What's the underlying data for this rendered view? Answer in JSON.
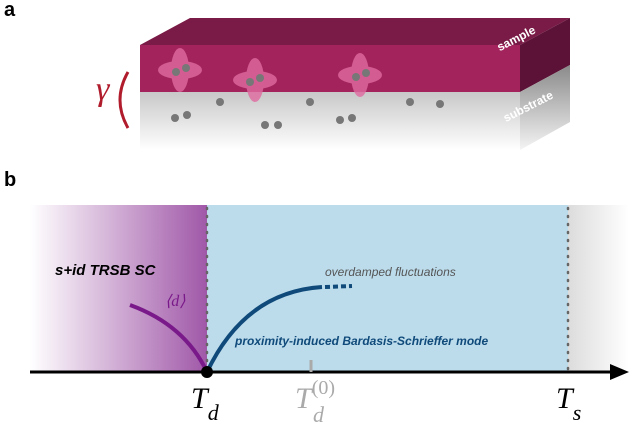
{
  "panel_a": {
    "label": "a",
    "gamma": "γ",
    "sample": "sample",
    "substrate": "substrate"
  },
  "panel_b": {
    "label": "b",
    "phase": "s+id TRSB SC",
    "order_parameter": "⟨d⟩",
    "fluctuations": "overdamped fluctuations",
    "mode": "proximity-induced Bardasis-Schrieffer mode",
    "td": {
      "main": "T",
      "sub": "d"
    },
    "td0": {
      "main": "T",
      "sup": "(0)",
      "sub": "d"
    },
    "ts": {
      "main": "T",
      "sub": "s"
    }
  }
}
